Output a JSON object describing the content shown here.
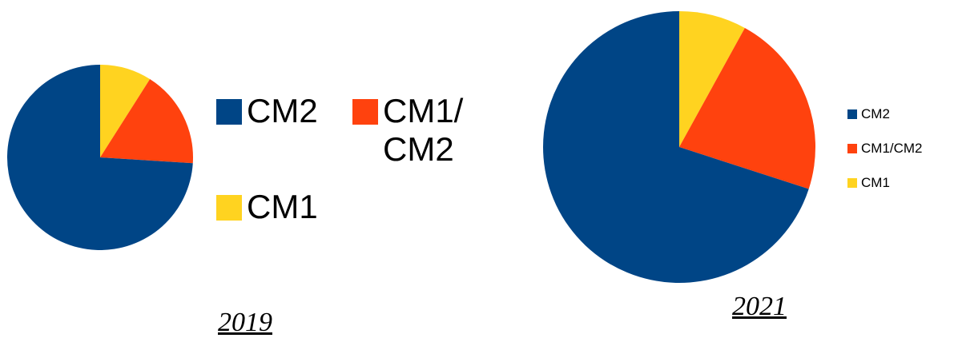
{
  "chart_data": [
    {
      "type": "pie",
      "caption": "2019",
      "slices": [
        {
          "label": "CM1",
          "value": 9,
          "color": "#FFD320"
        },
        {
          "label": "CM1/CM2",
          "value": 17,
          "color": "#FF420E"
        },
        {
          "label": "CM2",
          "value": 74,
          "color": "#004586"
        }
      ],
      "legend": {
        "placement": "right",
        "entries": [
          {
            "label_lines": [
              "CM2"
            ],
            "color": "#004586"
          },
          {
            "label_lines": [
              "CM1/",
              "CM2"
            ],
            "color": "#FF420E"
          },
          {
            "label_lines": [
              "CM1"
            ],
            "color": "#FFD320"
          }
        ]
      }
    },
    {
      "type": "pie",
      "caption": "2021",
      "slices": [
        {
          "label": "CM1",
          "value": 8,
          "color": "#FFD320"
        },
        {
          "label": "CM1/CM2",
          "value": 22,
          "color": "#FF420E"
        },
        {
          "label": "CM2",
          "value": 70,
          "color": "#004586"
        }
      ],
      "legend": {
        "placement": "right",
        "entries": [
          {
            "label": "CM2",
            "color": "#004586"
          },
          {
            "label": "CM1/CM2",
            "color": "#FF420E"
          },
          {
            "label": "CM1",
            "color": "#FFD320"
          }
        ]
      }
    }
  ]
}
